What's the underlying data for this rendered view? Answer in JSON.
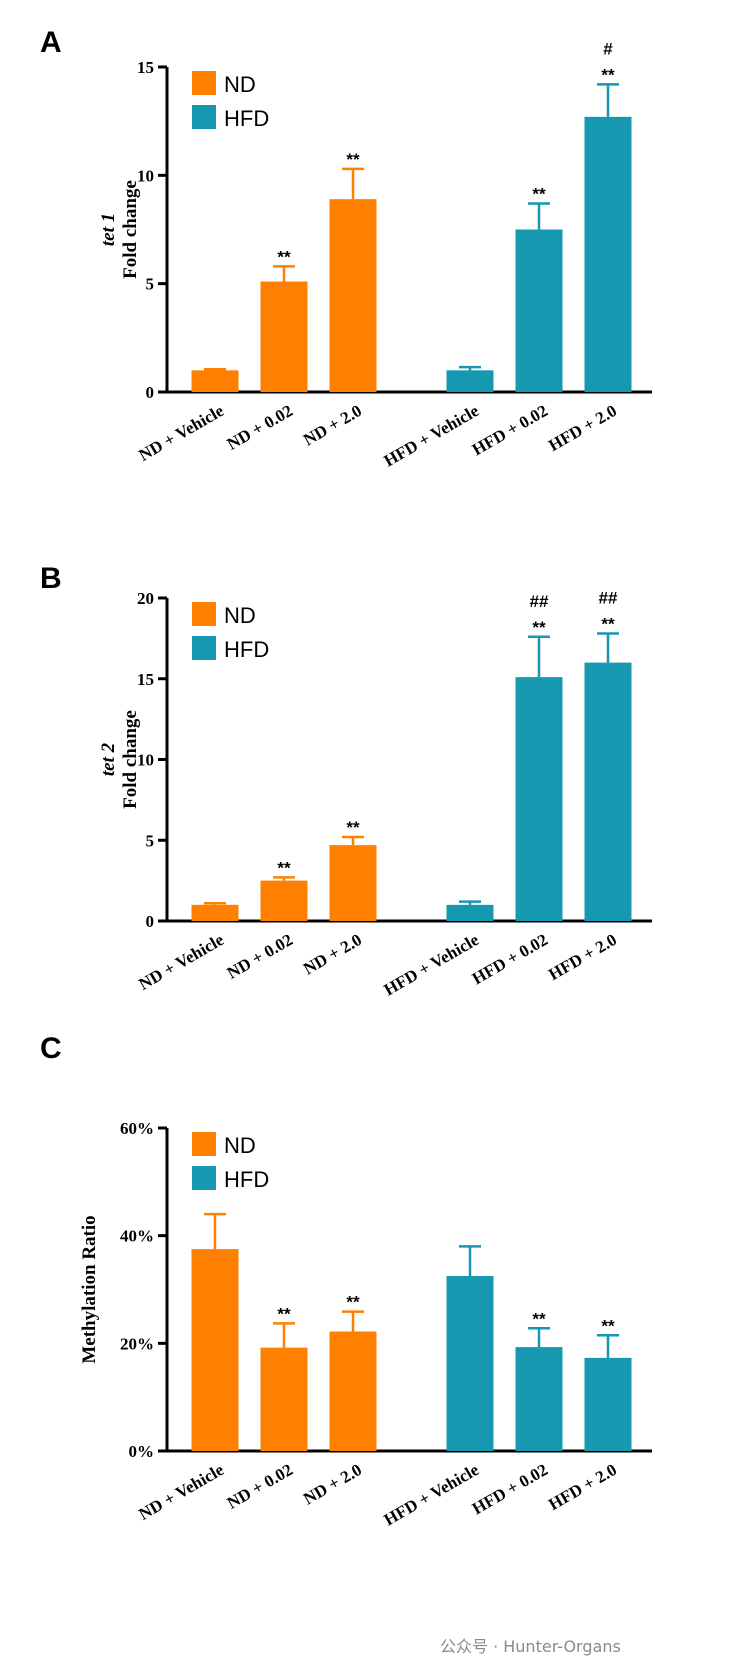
{
  "colors": {
    "nd": "#FF8000",
    "hfd": "#1598B0",
    "axis": "#000000"
  },
  "watermark": "公众号 · Hunter-Organs",
  "chart_data": [
    {
      "panel": "A",
      "type": "bar",
      "ylabel_gene": "tet 1",
      "ylabel": "Fold change",
      "ylim": [
        0,
        15
      ],
      "yticks": [
        0,
        5,
        10,
        15
      ],
      "ytick_labels": [
        "0",
        "5",
        "10",
        "15"
      ],
      "legend": [
        {
          "name": "ND",
          "color": "#FF8000"
        },
        {
          "name": "HFD",
          "color": "#1598B0"
        }
      ],
      "categories": [
        "ND + Vehicle",
        "ND + 0.02",
        "ND + 2.0",
        "HFD + Vehicle",
        "HFD + 0.02",
        "HFD + 2.0"
      ],
      "groups": [
        "ND",
        "ND",
        "ND",
        "HFD",
        "HFD",
        "HFD"
      ],
      "values": [
        1.0,
        5.1,
        8.9,
        1.0,
        7.5,
        12.7
      ],
      "errors": [
        0.05,
        0.7,
        1.4,
        0.15,
        1.2,
        1.5
      ],
      "annotations": [
        [],
        [
          "**"
        ],
        [
          "**"
        ],
        [],
        [
          "**"
        ],
        [
          "**",
          "#"
        ]
      ]
    },
    {
      "panel": "B",
      "type": "bar",
      "ylabel_gene": "tet 2",
      "ylabel": "Fold change",
      "ylim": [
        0,
        20
      ],
      "yticks": [
        0,
        5,
        10,
        15,
        20
      ],
      "ytick_labels": [
        "0",
        "5",
        "10",
        "15",
        "20"
      ],
      "legend": [
        {
          "name": "ND",
          "color": "#FF8000"
        },
        {
          "name": "HFD",
          "color": "#1598B0"
        }
      ],
      "categories": [
        "ND + Vehicle",
        "ND + 0.02",
        "ND + 2.0",
        "HFD + Vehicle",
        "HFD + 0.02",
        "HFD + 2.0"
      ],
      "groups": [
        "ND",
        "ND",
        "ND",
        "HFD",
        "HFD",
        "HFD"
      ],
      "values": [
        1.0,
        2.5,
        4.7,
        1.0,
        15.1,
        16.0
      ],
      "errors": [
        0.1,
        0.2,
        0.5,
        0.2,
        2.5,
        1.8
      ],
      "annotations": [
        [],
        [
          "**"
        ],
        [
          "**"
        ],
        [],
        [
          "**",
          "##"
        ],
        [
          "**",
          "##"
        ]
      ]
    },
    {
      "panel": "C",
      "type": "bar",
      "ylabel_gene": "",
      "ylabel": "Methylation Ratio",
      "ylim": [
        0,
        60
      ],
      "yticks": [
        0,
        20,
        40,
        60
      ],
      "ytick_labels": [
        "0%",
        "20%",
        "40%",
        "60%"
      ],
      "legend": [
        {
          "name": "ND",
          "color": "#FF8000"
        },
        {
          "name": "HFD",
          "color": "#1598B0"
        }
      ],
      "categories": [
        "ND + Vehicle",
        "ND + 0.02",
        "ND + 2.0",
        "HFD + Vehicle",
        "HFD + 0.02",
        "HFD + 2.0"
      ],
      "groups": [
        "ND",
        "ND",
        "ND",
        "HFD",
        "HFD",
        "HFD"
      ],
      "values": [
        37.5,
        19.2,
        22.2,
        32.5,
        19.3,
        17.3
      ],
      "errors": [
        6.5,
        4.5,
        3.7,
        5.5,
        3.5,
        4.2
      ],
      "annotations": [
        [],
        [
          "**"
        ],
        [
          "**"
        ],
        [],
        [
          "**"
        ],
        [
          "**"
        ]
      ]
    }
  ]
}
